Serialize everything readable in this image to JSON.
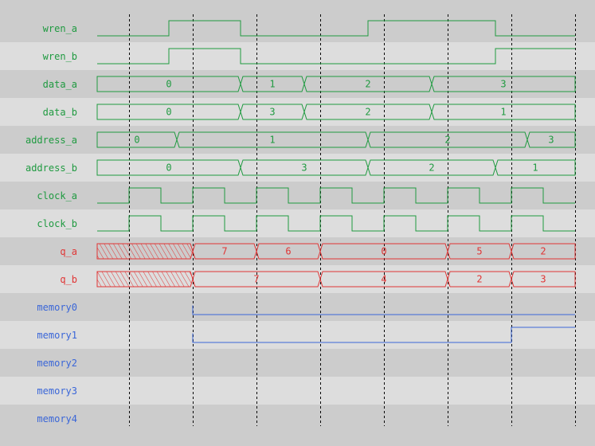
{
  "colors": {
    "row_dark": "#cccccc",
    "row_light": "#dddddd",
    "grid": "#000000"
  },
  "time_end": 15,
  "grid_times": [
    1,
    3,
    5,
    7,
    9,
    11,
    13,
    15
  ],
  "signals": [
    {
      "name": "wren_a",
      "type": "bit",
      "color": "#1f9a40",
      "init": 0,
      "edges": [
        2.25,
        4.5,
        8.5,
        12.5
      ]
    },
    {
      "name": "wren_b",
      "type": "bit",
      "color": "#1f9a40",
      "init": 0,
      "edges": [
        2.25,
        4.5,
        12.5
      ]
    },
    {
      "name": "data_a",
      "type": "bus",
      "color": "#1f9a40",
      "segments": [
        {
          "start": 0,
          "label": "0"
        },
        {
          "start": 4.5,
          "label": "1"
        },
        {
          "start": 6.5,
          "label": "2"
        },
        {
          "start": 10.5,
          "label": "3"
        }
      ]
    },
    {
      "name": "data_b",
      "type": "bus",
      "color": "#1f9a40",
      "segments": [
        {
          "start": 0,
          "label": "0"
        },
        {
          "start": 4.5,
          "label": "3"
        },
        {
          "start": 6.5,
          "label": "2"
        },
        {
          "start": 10.5,
          "label": "1"
        }
      ]
    },
    {
      "name": "address_a",
      "type": "bus",
      "color": "#1f9a40",
      "segments": [
        {
          "start": 0,
          "label": "0"
        },
        {
          "start": 2.5,
          "label": "1"
        },
        {
          "start": 8.5,
          "label": "2"
        },
        {
          "start": 13.5,
          "label": "3"
        }
      ]
    },
    {
      "name": "address_b",
      "type": "bus",
      "color": "#1f9a40",
      "segments": [
        {
          "start": 0,
          "label": "0"
        },
        {
          "start": 4.5,
          "label": "3"
        },
        {
          "start": 8.5,
          "label": "2"
        },
        {
          "start": 12.5,
          "label": "1"
        }
      ]
    },
    {
      "name": "clock_a",
      "type": "bit",
      "color": "#1f9a40",
      "init": 0,
      "edges": [
        1,
        2,
        3,
        4,
        5,
        6,
        7,
        8,
        9,
        10,
        11,
        12,
        13,
        14
      ]
    },
    {
      "name": "clock_b",
      "type": "bit",
      "color": "#1f9a40",
      "init": 0,
      "edges": [
        1,
        2,
        3,
        4,
        5,
        6,
        7,
        8,
        9,
        10,
        11,
        12,
        13,
        14
      ]
    },
    {
      "name": "q_a",
      "type": "bus",
      "color": "#e03535",
      "segments": [
        {
          "start": 0,
          "label": "",
          "undefined": true
        },
        {
          "start": 3,
          "label": "7"
        },
        {
          "start": 5,
          "label": "6"
        },
        {
          "start": 7,
          "label": "0"
        },
        {
          "start": 11,
          "label": "5"
        },
        {
          "start": 13,
          "label": "2"
        }
      ]
    },
    {
      "name": "q_b",
      "type": "bus",
      "color": "#e03535",
      "segments": [
        {
          "start": 0,
          "label": "",
          "undefined": true
        },
        {
          "start": 3,
          "label": "7"
        },
        {
          "start": 7,
          "label": "4"
        },
        {
          "start": 11,
          "label": "2"
        },
        {
          "start": 13,
          "label": "3"
        }
      ]
    },
    {
      "name": "memory0",
      "type": "bit",
      "color": "#3a66d8",
      "start": 3,
      "init": 0,
      "edges": []
    },
    {
      "name": "memory1",
      "type": "bit",
      "color": "#3a66d8",
      "start": 3,
      "init": 0,
      "edges": [
        13
      ]
    },
    {
      "name": "memory2",
      "type": "bit",
      "color": "#3a66d8",
      "start": null,
      "edges": []
    },
    {
      "name": "memory3",
      "type": "bit",
      "color": "#3a66d8",
      "start": null,
      "edges": []
    },
    {
      "name": "memory4",
      "type": "bit",
      "color": "#3a66d8",
      "start": null,
      "edges": []
    }
  ]
}
